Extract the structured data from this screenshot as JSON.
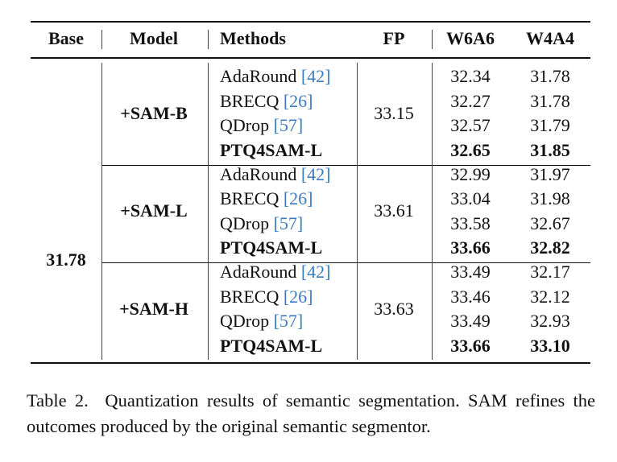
{
  "table": {
    "header": [
      "Base",
      "Model",
      "Methods",
      "FP",
      "W6A6",
      "W4A4"
    ],
    "base": "31.78",
    "groups": [
      {
        "model": "+SAM-B",
        "fp": "33.15",
        "rows": [
          {
            "method": "AdaRound",
            "ref": "[42]",
            "w6a6": "32.34",
            "w4a4": "31.78"
          },
          {
            "method": "BRECQ",
            "ref": "[26]",
            "w6a6": "32.27",
            "w4a4": "31.78"
          },
          {
            "method": "QDrop",
            "ref": "[57]",
            "w6a6": "32.57",
            "w4a4": "31.79"
          },
          {
            "method": "PTQ4SAM-L",
            "w6a6": "32.65",
            "w4a4": "31.85"
          }
        ]
      },
      {
        "model": "+SAM-L",
        "fp": "33.61",
        "rows": [
          {
            "method": "AdaRound",
            "ref": "[42]",
            "w6a6": "32.99",
            "w4a4": "31.97"
          },
          {
            "method": "BRECQ",
            "ref": "[26]",
            "w6a6": "33.04",
            "w4a4": "31.98"
          },
          {
            "method": "QDrop",
            "ref": "[57]",
            "w6a6": "33.58",
            "w4a4": "32.67"
          },
          {
            "method": "PTQ4SAM-L",
            "w6a6": "33.66",
            "w4a4": "32.82"
          }
        ]
      },
      {
        "model": "+SAM-H",
        "fp": "33.63",
        "rows": [
          {
            "method": "AdaRound",
            "ref": "[42]",
            "w6a6": "33.49",
            "w4a4": "32.17"
          },
          {
            "method": "BRECQ",
            "ref": "[26]",
            "w6a6": "33.46",
            "w4a4": "32.12"
          },
          {
            "method": "QDrop",
            "ref": "[57]",
            "w6a6": "33.49",
            "w4a4": "32.93"
          },
          {
            "method": "PTQ4SAM-L",
            "w6a6": "33.66",
            "w4a4": "33.10"
          }
        ]
      }
    ]
  },
  "caption": {
    "label": "Table 2.",
    "text": "Quantization results of semantic segmentation. SAM refines the outcomes produced by the original semantic segmentor."
  }
}
